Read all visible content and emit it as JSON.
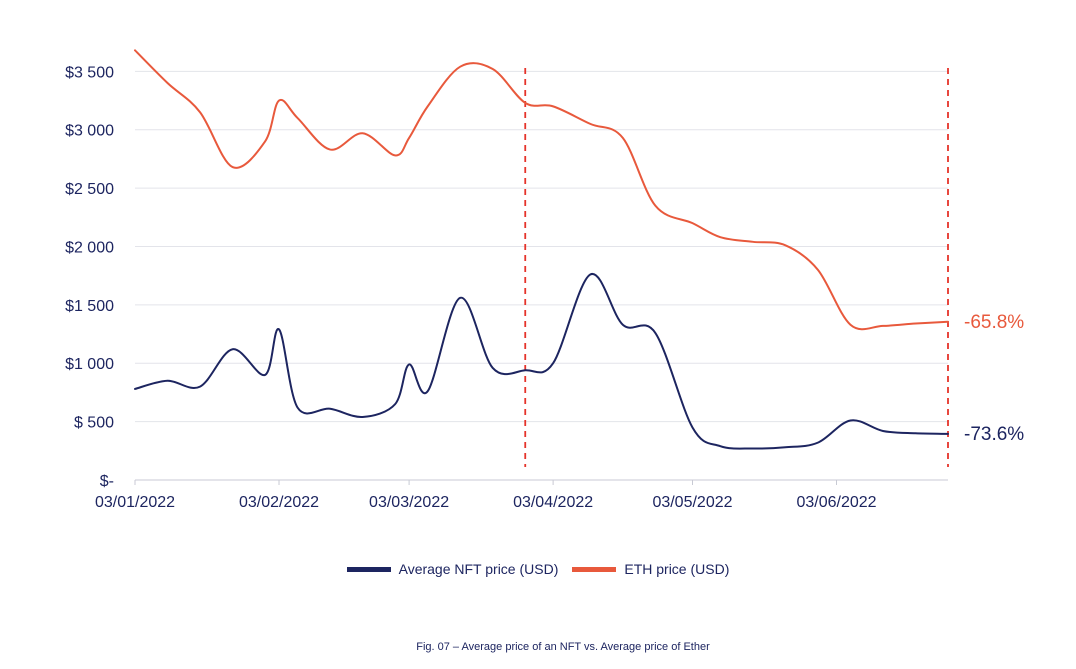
{
  "chart_data": {
    "type": "line",
    "x": [
      "2022-01-03",
      "2022-01-10",
      "2022-01-17",
      "2022-01-24",
      "2022-01-31",
      "2022-02-03",
      "2022-02-07",
      "2022-02-14",
      "2022-02-21",
      "2022-02-28",
      "2022-03-03",
      "2022-03-07",
      "2022-03-14",
      "2022-03-21",
      "2022-03-28",
      "2022-04-03",
      "2022-04-11",
      "2022-04-18",
      "2022-04-25",
      "2022-05-03",
      "2022-05-09",
      "2022-05-16",
      "2022-05-23",
      "2022-05-30",
      "2022-06-06",
      "2022-06-13",
      "2022-06-20",
      "2022-06-27"
    ],
    "series": [
      {
        "name": "Average NFT price (USD)",
        "color": "#1d2560",
        "values": [
          780,
          850,
          800,
          1120,
          900,
          1290,
          620,
          610,
          540,
          650,
          990,
          760,
          1560,
          960,
          940,
          1000,
          1760,
          1330,
          1260,
          450,
          290,
          270,
          280,
          320,
          510,
          420,
          400,
          395
        ]
      },
      {
        "name": "ETH price (USD)",
        "color": "#e8593c",
        "values": [
          3680,
          3400,
          3150,
          2680,
          2900,
          3250,
          3100,
          2830,
          2970,
          2780,
          2930,
          3200,
          3540,
          3520,
          3230,
          3200,
          3050,
          2930,
          2350,
          2200,
          2080,
          2040,
          2010,
          1800,
          1330,
          1320,
          1340,
          1355
        ]
      }
    ],
    "y_ticks": [
      "$-",
      "$ 500",
      "$1 000",
      "$1 500",
      "$2 000",
      "$2 500",
      "$3 000",
      "$3 500"
    ],
    "x_ticks": [
      "03/01/2022",
      "03/02/2022",
      "03/03/2022",
      "03/04/2022",
      "03/05/2022",
      "03/06/2022"
    ],
    "ylim": [
      0,
      3700
    ],
    "end_labels": [
      {
        "text": "-65.8%",
        "color": "#e8593c"
      },
      {
        "text": "-73.6%",
        "color": "#1d2560"
      }
    ],
    "reference_lines_x": [
      "2022-03-28",
      "2022-06-27"
    ],
    "reference_line_color": "#e5332a",
    "grid": true,
    "legend_position": "bottom",
    "caption": "Fig. 07 – Average price of an NFT vs. Average price of Ether"
  }
}
